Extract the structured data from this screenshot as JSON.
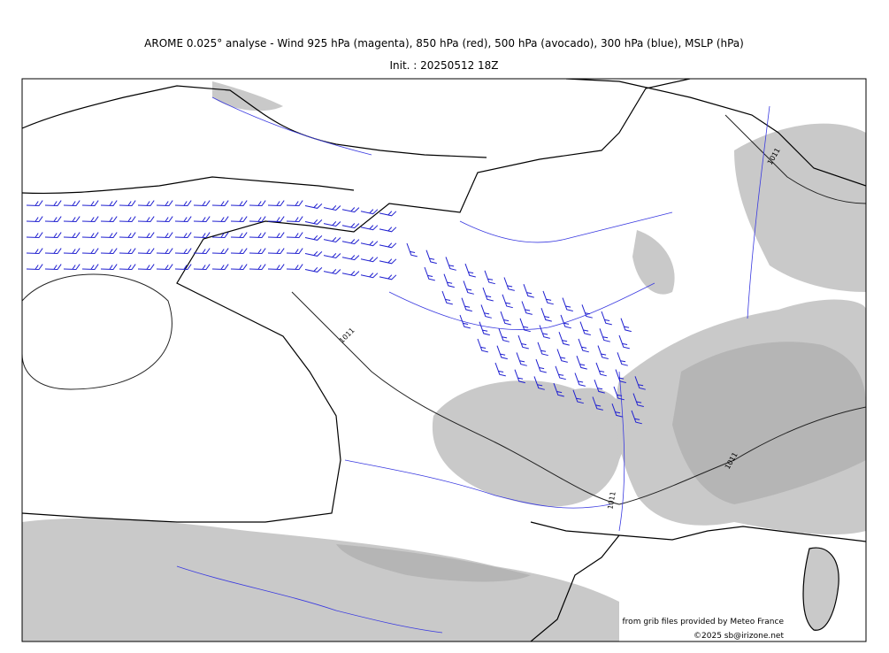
{
  "header": {
    "title": "AROME 0.025° analyse - Wind 925 hPa (magenta), 850 hPa (red), 500 hPa (avocado), 300 hPa (blue), MSLP (hPa)",
    "init": "Init. : 20250512 18Z"
  },
  "map": {
    "isobar_labels": [
      "1011",
      "1011",
      "1011",
      "1011"
    ]
  },
  "credits": {
    "source": "from grib files provided by Meteo France",
    "copyright": "©2025 sb@irizone.net"
  }
}
